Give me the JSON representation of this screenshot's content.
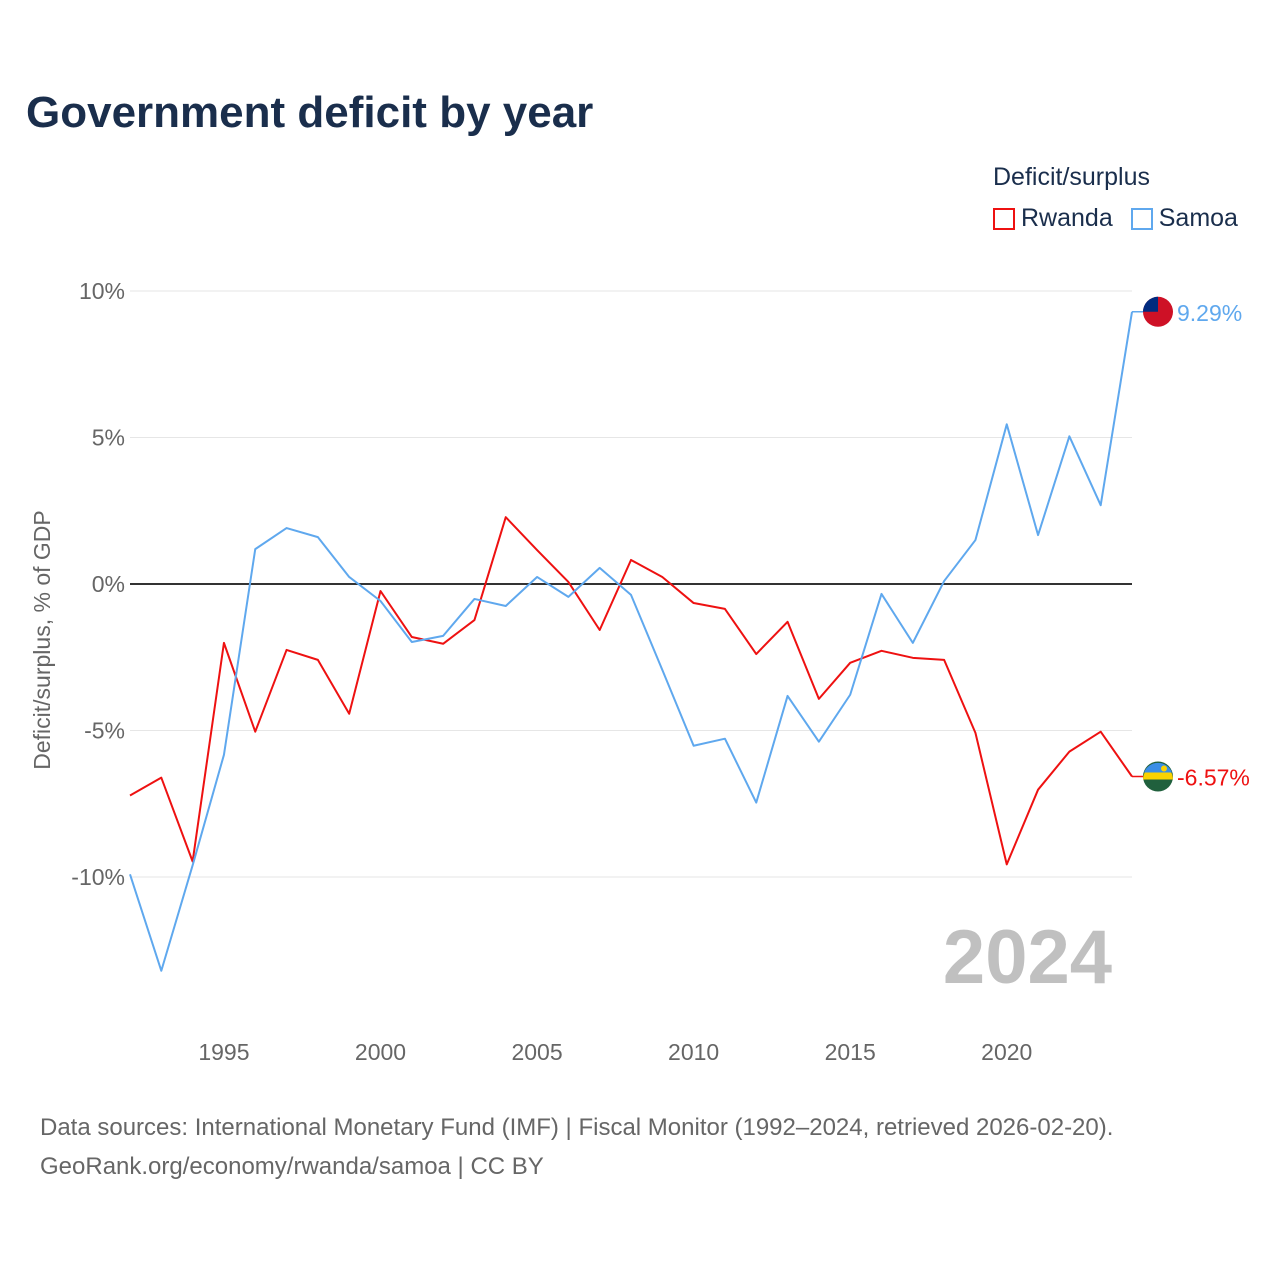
{
  "title": "Government deficit by year",
  "legend": {
    "title": "Deficit/surplus",
    "items": [
      {
        "name": "Rwanda",
        "color": "#ee1111"
      },
      {
        "name": "Samoa",
        "color": "#5fa8ee"
      }
    ]
  },
  "year_watermark": "2024",
  "footer": {
    "line1": "Data sources: International Monetary Fund (IMF) | Fiscal Monitor (1992–2024, retrieved 2026-02-20).",
    "line2": "GeoRank.org/economy/rwanda/samoa | CC BY"
  },
  "chart_data": {
    "type": "line",
    "title": "Government deficit by year",
    "xlabel": "",
    "ylabel": "Deficit/surplus, % of GDP",
    "xlim": [
      1992,
      2024
    ],
    "ylim": [
      -14,
      10
    ],
    "x_ticks": [
      1995,
      2000,
      2005,
      2010,
      2015,
      2020
    ],
    "y_ticks": [
      {
        "v": 10,
        "label": "10%"
      },
      {
        "v": 5,
        "label": "5%"
      },
      {
        "v": 0,
        "label": "0%"
      },
      {
        "v": -5,
        "label": "-5%"
      },
      {
        "v": -10,
        "label": "-10%"
      }
    ],
    "grid": true,
    "legend_position": "top-right",
    "x": [
      1992,
      1993,
      1994,
      1995,
      1996,
      1997,
      1998,
      1999,
      2000,
      2001,
      2002,
      2003,
      2004,
      2005,
      2006,
      2007,
      2008,
      2009,
      2010,
      2011,
      2012,
      2013,
      2014,
      2015,
      2016,
      2017,
      2018,
      2019,
      2020,
      2021,
      2022,
      2023,
      2024
    ],
    "series": [
      {
        "name": "Rwanda",
        "color": "#ee1111",
        "end_label": "-6.57%",
        "values": [
          -7.22,
          -6.61,
          -9.47,
          -2.01,
          -5.04,
          -2.25,
          -2.59,
          -4.43,
          -0.24,
          -1.81,
          -2.04,
          -1.23,
          2.28,
          1.16,
          0.07,
          -1.57,
          0.82,
          0.24,
          -0.65,
          -0.85,
          -2.39,
          -1.29,
          -3.92,
          -2.69,
          -2.28,
          -2.52,
          -2.59,
          -5.08,
          -9.57,
          -7.02,
          -5.72,
          -5.04,
          -6.57
        ]
      },
      {
        "name": "Samoa",
        "color": "#5fa8ee",
        "end_label": "9.29%",
        "values": [
          -9.91,
          -13.2,
          -9.6,
          -5.83,
          1.19,
          1.91,
          1.6,
          0.24,
          -0.58,
          -1.98,
          -1.77,
          -0.51,
          -0.75,
          0.24,
          -0.44,
          0.55,
          -0.37,
          -2.93,
          -5.52,
          -5.28,
          -7.46,
          -3.82,
          -5.38,
          -3.78,
          -0.34,
          -2.01,
          0.1,
          1.5,
          5.45,
          1.67,
          5.04,
          2.69,
          9.29
        ]
      }
    ]
  }
}
